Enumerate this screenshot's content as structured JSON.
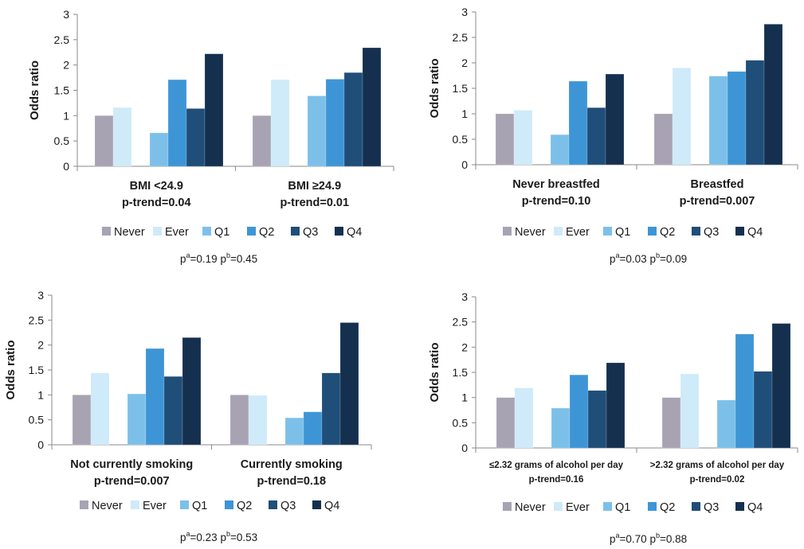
{
  "colors": {
    "Never": "#a8a3b3",
    "Ever": "#cfeaf8",
    "Q1": "#7cc0ea",
    "Q2": "#3e95d6",
    "Q3": "#1f4e79",
    "Q4": "#15304f",
    "axis": "#8a8a8a"
  },
  "chart_data": [
    {
      "type": "bar",
      "ylabel": "Odds ratio",
      "ylim": [
        0,
        3
      ],
      "yticks": [
        "0",
        "0.5",
        "1",
        "1.5",
        "2",
        "2.5",
        "3"
      ],
      "grid": false,
      "legend": "bottom",
      "groups": [
        {
          "label": "BMI <24.9",
          "trend": "p-trend=0.04"
        },
        {
          "label": "BMI ≥24.9",
          "trend": "p-trend=0.01"
        }
      ],
      "series": [
        {
          "name": "Never",
          "values": [
            1.0,
            1.0
          ]
        },
        {
          "name": "Ever",
          "values": [
            1.16,
            1.71
          ]
        },
        {
          "name": "Q1",
          "values": [
            0.66,
            1.39
          ]
        },
        {
          "name": "Q2",
          "values": [
            1.71,
            1.72
          ]
        },
        {
          "name": "Q3",
          "values": [
            1.14,
            1.85
          ]
        },
        {
          "name": "Q4",
          "values": [
            2.22,
            2.34
          ]
        }
      ],
      "pvalues": {
        "pa": "=0.19",
        "pb": "=0.45"
      }
    },
    {
      "type": "bar",
      "ylabel": "Odds ratio",
      "ylim": [
        0,
        3
      ],
      "yticks": [
        "0",
        "0.5",
        "1",
        "1.5",
        "2",
        "2.5",
        "3"
      ],
      "grid": false,
      "legend": "bottom",
      "groups": [
        {
          "label": "Never breastfed",
          "trend": "p-trend=0.10"
        },
        {
          "label": "Breastfed",
          "trend": "p-trend=0.007"
        }
      ],
      "series": [
        {
          "name": "Never",
          "values": [
            1.0,
            1.0
          ]
        },
        {
          "name": "Ever",
          "values": [
            1.07,
            1.9
          ]
        },
        {
          "name": "Q1",
          "values": [
            0.59,
            1.74
          ]
        },
        {
          "name": "Q2",
          "values": [
            1.64,
            1.83
          ]
        },
        {
          "name": "Q3",
          "values": [
            1.12,
            2.05
          ]
        },
        {
          "name": "Q4",
          "values": [
            1.78,
            2.76
          ]
        }
      ],
      "pvalues": {
        "pa": "=0.03",
        "pb": "=0.09"
      }
    },
    {
      "type": "bar",
      "ylabel": "Odds ratio",
      "ylim": [
        0,
        3
      ],
      "yticks": [
        "0",
        "0.5",
        "1",
        "1.5",
        "2",
        "2.5",
        "3"
      ],
      "grid": false,
      "legend": "bottom",
      "groups": [
        {
          "label": "Not currently smoking",
          "trend": "p-trend=0.007"
        },
        {
          "label": "Currently smoking",
          "trend": "p-trend=0.18"
        }
      ],
      "series": [
        {
          "name": "Never",
          "values": [
            1.0,
            1.0
          ]
        },
        {
          "name": "Ever",
          "values": [
            1.44,
            0.99
          ]
        },
        {
          "name": "Q1",
          "values": [
            1.02,
            0.54
          ]
        },
        {
          "name": "Q2",
          "values": [
            1.93,
            0.66
          ]
        },
        {
          "name": "Q3",
          "values": [
            1.37,
            1.44
          ]
        },
        {
          "name": "Q4",
          "values": [
            2.15,
            2.45
          ]
        }
      ],
      "pvalues": {
        "pa": "=0.23",
        "pb": "=0.53"
      }
    },
    {
      "type": "bar",
      "ylabel": "Odds ratio",
      "ylim": [
        0,
        3
      ],
      "yticks": [
        "0",
        "0.5",
        "1",
        "1.5",
        "2",
        "2.5",
        "3"
      ],
      "grid": false,
      "legend": "bottom",
      "groups": [
        {
          "label": "≤2.32 grams of alcohol  per day",
          "trend": "p-trend=0.16"
        },
        {
          "label": ">2.32 grams of alcohol  per day",
          "trend": "p-trend=0.02"
        }
      ],
      "series": [
        {
          "name": "Never",
          "values": [
            1.0,
            1.0
          ]
        },
        {
          "name": "Ever",
          "values": [
            1.19,
            1.47
          ]
        },
        {
          "name": "Q1",
          "values": [
            0.79,
            0.95
          ]
        },
        {
          "name": "Q2",
          "values": [
            1.45,
            2.26
          ]
        },
        {
          "name": "Q3",
          "values": [
            1.14,
            1.52
          ]
        },
        {
          "name": "Q4",
          "values": [
            1.69,
            2.47
          ]
        }
      ],
      "pvalues": {
        "pa": "=0.70",
        "pb": "=0.88"
      }
    }
  ]
}
